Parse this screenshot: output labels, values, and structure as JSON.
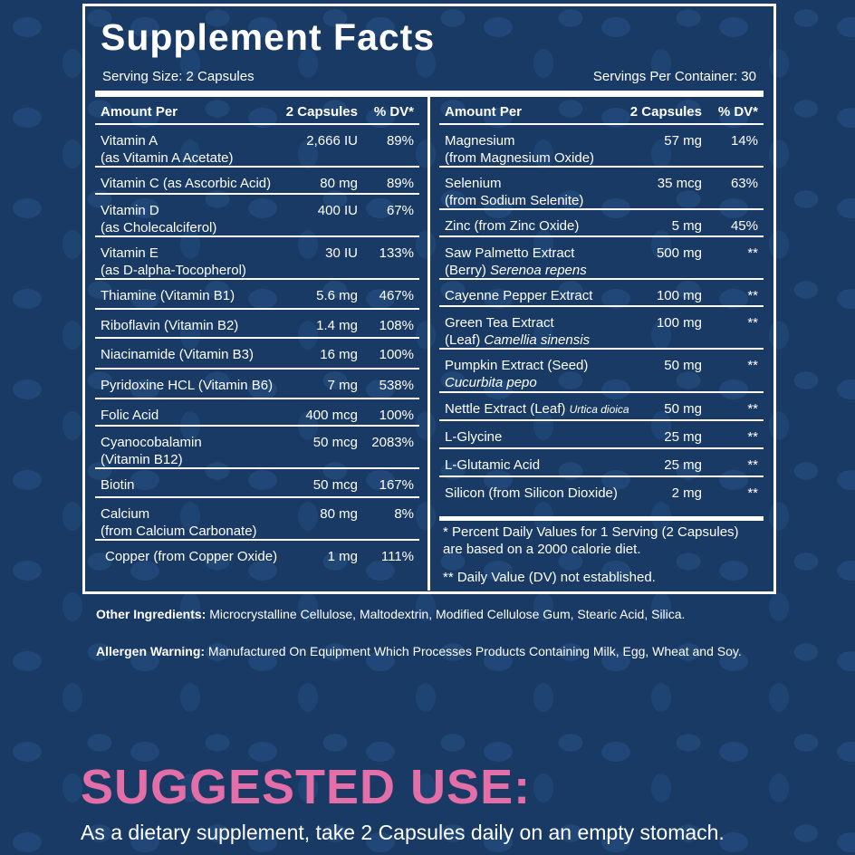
{
  "facts": {
    "title": "Supplement Facts",
    "serving_size": "Serving Size: 2 Capsules",
    "servings_per_container": "Servings Per Container: 30",
    "header": {
      "amount_per": "Amount Per",
      "capsules": "2 Capsules",
      "dv": "% DV*"
    },
    "left_rows": [
      {
        "name": "Vitamin A\n(as Vitamin A Acetate)",
        "amount": "2,666 IU",
        "dv": "89%"
      },
      {
        "name": "Vitamin C (as Ascorbic Acid)",
        "amount": "80 mg",
        "dv": "89%"
      },
      {
        "name": "Vitamin D\n(as Cholecalciferol)",
        "amount": "400 IU",
        "dv": "67%"
      },
      {
        "name": "Vitamin E\n(as D-alpha-Tocopherol)",
        "amount": "30 IU",
        "dv": "133%"
      },
      {
        "name": "Thiamine (Vitamin B1)",
        "amount": "5.6 mg",
        "dv": "467%"
      },
      {
        "name": "Riboflavin (Vitamin B2)",
        "amount": "1.4 mg",
        "dv": "108%"
      },
      {
        "name": "Niacinamide (Vitamin B3)",
        "amount": "16 mg",
        "dv": "100%"
      },
      {
        "name": "Pyridoxine HCL (Vitamin B6)",
        "amount": "7 mg",
        "dv": "538%"
      },
      {
        "name": "Folic Acid",
        "amount": "400 mcg",
        "dv": "100%"
      },
      {
        "name": "Cyanocobalamin\n(Vitamin B12)",
        "amount": "50 mcg",
        "dv": "2083%"
      },
      {
        "name": "Biotin",
        "amount": "50 mcg",
        "dv": "167%"
      },
      {
        "name": "Calcium\n(from Calcium Carbonate)",
        "amount": "80 mg",
        "dv": "8%"
      },
      {
        "name": "Copper (from Copper Oxide)",
        "amount": "1 mg",
        "dv": "111%"
      }
    ],
    "right_rows": [
      {
        "name": "Magnesium\n(from Magnesium Oxide)",
        "amount": "57 mg",
        "dv": "14%"
      },
      {
        "name": "Selenium\n(from Sodium Selenite)",
        "amount": "35 mcg",
        "dv": "63%"
      },
      {
        "name": "Zinc (from Zinc Oxide)",
        "amount": "5 mg",
        "dv": "45%"
      },
      {
        "name": "Saw Palmetto Extract\n(Berry) ",
        "latin": "Serenoa repens",
        "amount": "500 mg",
        "dv": "**"
      },
      {
        "name": "Cayenne Pepper Extract",
        "amount": "100 mg",
        "dv": "**"
      },
      {
        "name": "Green Tea Extract\n(Leaf) ",
        "latin": "Camellia sinensis",
        "amount": "100 mg",
        "dv": "**"
      },
      {
        "name": "Pumpkin Extract (Seed)\n",
        "latin": "Cucurbita pepo",
        "amount": "50 mg",
        "dv": "**"
      },
      {
        "name": "Nettle Extract (Leaf) ",
        "latin": "Urtica dioica",
        "amount": "50 mg",
        "dv": "**"
      },
      {
        "name": "L-Glycine",
        "amount": "25 mg",
        "dv": "**"
      },
      {
        "name": "L-Glutamic Acid",
        "amount": "25 mg",
        "dv": "**"
      },
      {
        "name": "Silicon (from Silicon Dioxide)",
        "amount": "2 mg",
        "dv": "**"
      }
    ],
    "note_percent": "* Percent Daily Values for 1 Serving (2 Capsules)\n   are based on a 2000 calorie diet.",
    "note_dv": "** Daily Value (DV) not established."
  },
  "ingredients": {
    "label": "Other Ingredients:",
    "text": " Microcrystalline Cellulose, Maltodextrin, Modified Cellulose Gum, Stearic Acid, Silica."
  },
  "allergen": {
    "label": "Allergen Warning:",
    "text": " Manufactured On Equipment Which Processes Products Containing Milk, Egg, Wheat and Soy."
  },
  "suggested_use": {
    "title": "SUGGESTED USE:",
    "text": "As a dietary supplement, take  2 Capsules daily on an empty stomach."
  },
  "colors": {
    "background": "#183a64",
    "accent": "#e46ea8",
    "text": "#ffffff"
  }
}
